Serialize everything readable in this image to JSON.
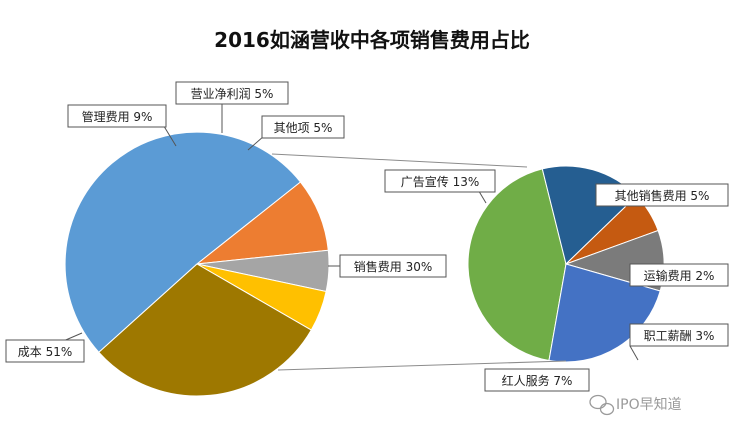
{
  "chart_data": {
    "type": "pie",
    "title": "2016如涵营收中各项销售费用占比",
    "main_pie": [
      {
        "name": "成本",
        "value": 51,
        "label": "成本 51%",
        "color": "#5b9bd5"
      },
      {
        "name": "管理费用",
        "value": 9,
        "label": "管理费用 9%",
        "color": "#ed7d31"
      },
      {
        "name": "营业净利润",
        "value": 5,
        "label": "营业净利润 5%",
        "color": "#a5a5a5"
      },
      {
        "name": "其他项",
        "value": 5,
        "label": "其他项 5%",
        "color": "#ffc000"
      },
      {
        "name": "销售费用",
        "value": 30,
        "label": "销售费用 30%",
        "color": "#9e7800"
      }
    ],
    "sub_pie_of": "销售费用",
    "sub_pie": [
      {
        "name": "广告宣传",
        "value": 13,
        "label": "广告宣传 13%",
        "color": "#70ad47"
      },
      {
        "name": "其他销售费用",
        "value": 5,
        "label": "其他销售费用 5%",
        "color": "#255e91"
      },
      {
        "name": "运输费用",
        "value": 2,
        "label": "运输费用 2%",
        "color": "#c55a11"
      },
      {
        "name": "职工薪酬",
        "value": 3,
        "label": "职工薪酬 3%",
        "color": "#7b7b7b"
      },
      {
        "name": "红人服务",
        "value": 7,
        "label": "红人服务 7%",
        "color": "#4472c4"
      }
    ]
  },
  "watermark": {
    "text": "IPO早知道",
    "icon": "wechat-icon"
  }
}
